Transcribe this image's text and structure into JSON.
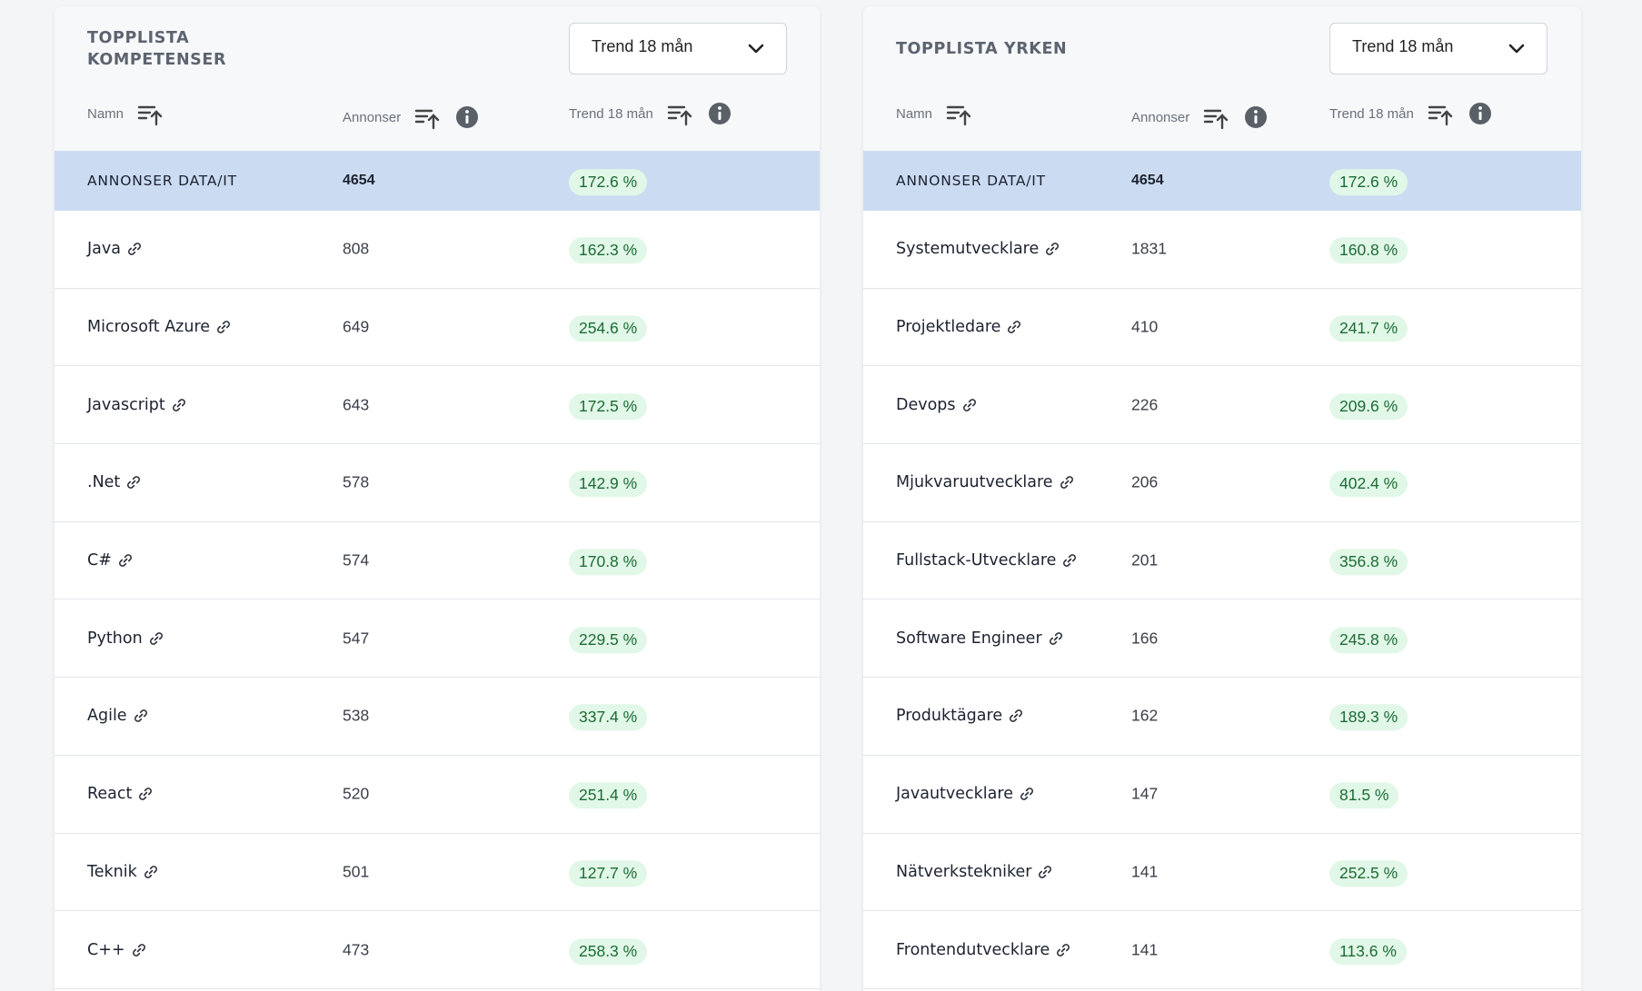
{
  "left_panel": {
    "title": "TOPPLISTA KOMPETENSER",
    "dropdown": {
      "selected": "Trend 18 mån"
    },
    "columns": {
      "name": "Namn",
      "count": "Annonser",
      "trend": "Trend 18 mån"
    },
    "total": {
      "name": "ANNONSER DATA/IT",
      "count": "4654",
      "trend": "172.6 %"
    },
    "rows": [
      {
        "name": "Java",
        "count": "808",
        "trend": "162.3 %"
      },
      {
        "name": "Microsoft Azure",
        "count": "649",
        "trend": "254.6 %"
      },
      {
        "name": "Javascript",
        "count": "643",
        "trend": "172.5 %"
      },
      {
        "name": ".Net",
        "count": "578",
        "trend": "142.9 %"
      },
      {
        "name": "C#",
        "count": "574",
        "trend": "170.8 %"
      },
      {
        "name": "Python",
        "count": "547",
        "trend": "229.5 %"
      },
      {
        "name": "Agile",
        "count": "538",
        "trend": "337.4 %"
      },
      {
        "name": "React",
        "count": "520",
        "trend": "251.4 %"
      },
      {
        "name": "Teknik",
        "count": "501",
        "trend": "127.7 %"
      },
      {
        "name": "C++",
        "count": "473",
        "trend": "258.3 %"
      }
    ]
  },
  "right_panel": {
    "title": "TOPPLISTA YRKEN",
    "dropdown": {
      "selected": "Trend 18 mån"
    },
    "columns": {
      "name": "Namn",
      "count": "Annonser",
      "trend": "Trend 18 mån"
    },
    "total": {
      "name": "ANNONSER DATA/IT",
      "count": "4654",
      "trend": "172.6 %"
    },
    "rows": [
      {
        "name": "Systemutvecklare",
        "count": "1831",
        "trend": "160.8 %"
      },
      {
        "name": "Projektledare",
        "count": "410",
        "trend": "241.7 %"
      },
      {
        "name": "Devops",
        "count": "226",
        "trend": "209.6 %"
      },
      {
        "name": "Mjukvaruutvecklare",
        "count": "206",
        "trend": "402.4 %"
      },
      {
        "name": "Fullstack-Utvecklare",
        "count": "201",
        "trend": "356.8 %"
      },
      {
        "name": "Software Engineer",
        "count": "166",
        "trend": "245.8 %"
      },
      {
        "name": "Produktägare",
        "count": "162",
        "trend": "189.3 %"
      },
      {
        "name": "Javautvecklare",
        "count": "147",
        "trend": "81.5 %"
      },
      {
        "name": "Nätverkstekniker",
        "count": "141",
        "trend": "252.5 %"
      },
      {
        "name": "Frontendutvecklare",
        "count": "141",
        "trend": "113.6 %"
      }
    ]
  },
  "icons": {
    "sort": "sort-ascending-icon",
    "info": "info-icon",
    "link": "link-icon",
    "dropdown": "chevron-down-icon"
  },
  "colors": {
    "total_row_bg": "#cbdcf2",
    "badge_bg": "#e1f7e7",
    "badge_text": "#1d6b36"
  }
}
